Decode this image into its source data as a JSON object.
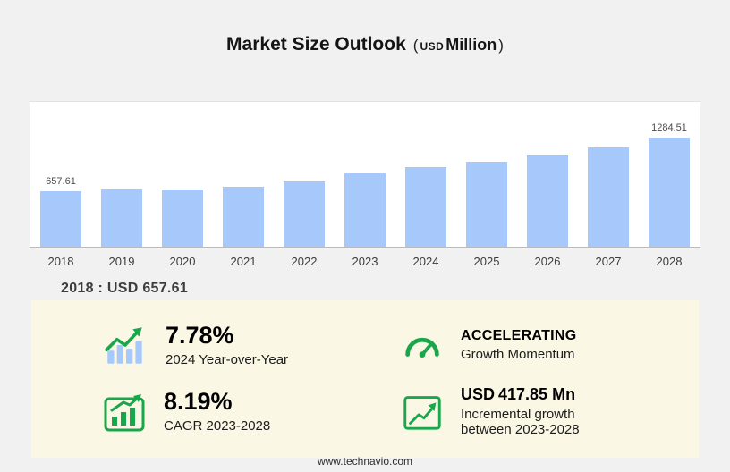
{
  "header": {
    "title": "Market Size Outlook",
    "unit_open": "(",
    "unit_currency": "USD",
    "unit_word": "Million",
    "unit_close": ")"
  },
  "chart_data": {
    "type": "bar",
    "title": "Market Size Outlook (USD Million)",
    "categories": [
      "2018",
      "2019",
      "2020",
      "2021",
      "2022",
      "2023",
      "2024",
      "2025",
      "2026",
      "2027",
      "2028"
    ],
    "values": [
      657.61,
      682,
      676,
      706,
      772,
      866.66,
      934.15,
      1005,
      1082,
      1170,
      1284.51
    ],
    "value_labels": [
      "657.61",
      "",
      "",
      "",
      "",
      "",
      "",
      "",
      "",
      "",
      "1284.51"
    ],
    "first_bar_label": "657.61",
    "last_bar_label": "1284.51",
    "xlabel": "",
    "ylabel": "USD Million",
    "ylim": [
      0,
      1400
    ],
    "grid": "top-line-only",
    "legend": "none",
    "bar_color": "#a6c8fa"
  },
  "summary": {
    "text": "2018 : USD  657.61"
  },
  "stats": {
    "yoy": {
      "value": "7.78%",
      "caption": "2024 Year-over-Year"
    },
    "momentum": {
      "title": "ACCELERATING",
      "caption": "Growth Momentum"
    },
    "cagr": {
      "value": "8.19%",
      "caption": "CAGR 2023-2028"
    },
    "incremental": {
      "value_currency": "USD",
      "value": "417.85 Mn",
      "caption_line1": "Incremental growth",
      "caption_line2": "between 2023-2028"
    }
  },
  "footer": {
    "url": "www.technavio.com"
  },
  "colors": {
    "accent_green": "#1aa64b",
    "bar_blue": "#a6c8fa",
    "panel_bg": "#fbf7e5",
    "page_bg": "#f1f1f2"
  }
}
